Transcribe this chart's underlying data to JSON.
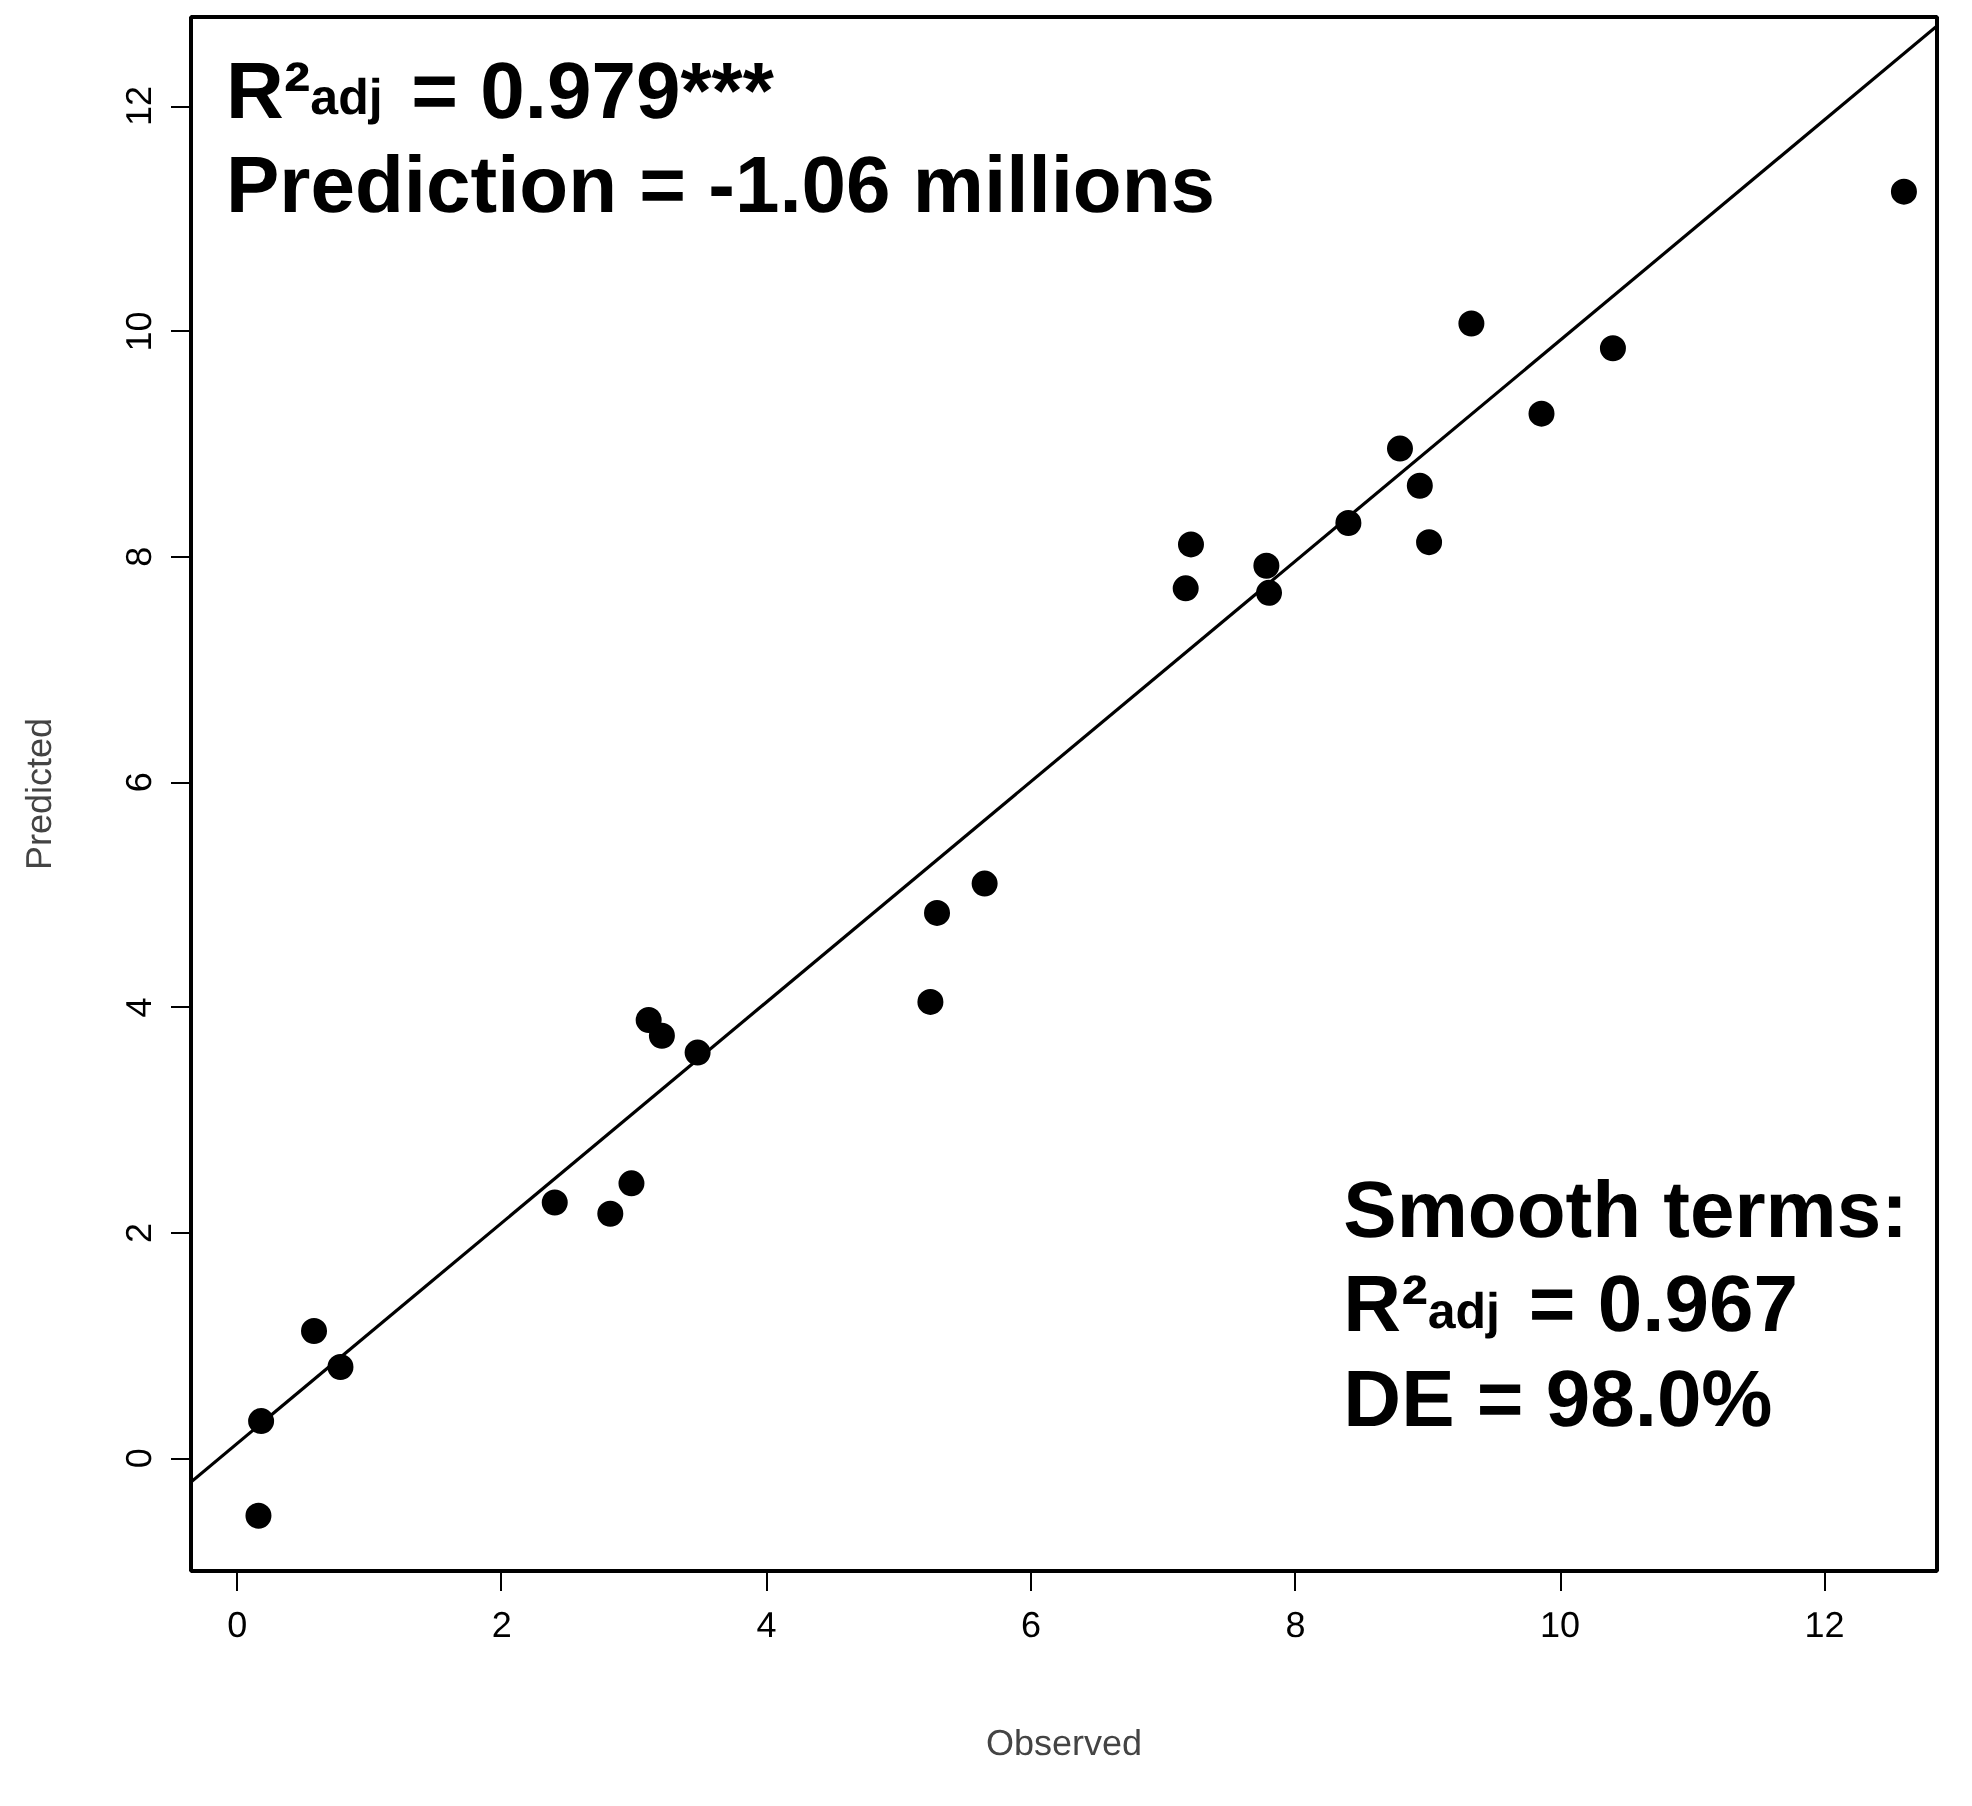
{
  "chart_data": {
    "type": "scatter",
    "xlabel": "Observed",
    "ylabel": "Predicted",
    "xlim": [
      -0.35,
      12.85
    ],
    "ylim": [
      -1.0,
      12.79
    ],
    "xticks": [
      0,
      2,
      4,
      6,
      8,
      10,
      12
    ],
    "yticks": [
      0,
      2,
      4,
      6,
      8,
      10,
      12
    ],
    "grid": false,
    "marker": "circle",
    "series": [
      {
        "color": "#000000",
        "x": [
          0.16,
          0.18,
          0.58,
          0.78,
          2.4,
          2.82,
          2.98,
          3.11,
          3.21,
          3.48,
          5.24,
          5.29,
          5.65,
          7.17,
          7.21,
          7.78,
          7.8,
          8.4,
          8.79,
          8.94,
          9.01,
          9.33,
          9.86,
          10.4,
          12.6
        ],
        "values": [
          -0.51,
          0.33,
          1.13,
          0.81,
          2.27,
          2.17,
          2.44,
          3.89,
          3.75,
          3.6,
          4.05,
          4.84,
          5.1,
          7.72,
          8.11,
          7.92,
          7.68,
          8.3,
          8.96,
          8.63,
          8.13,
          10.07,
          9.27,
          9.85,
          11.24
        ]
      },
      {
        "type": "line",
        "color": "#000000",
        "line_style": "solid",
        "marker": "none",
        "x": [
          -0.35,
          12.85
        ],
        "values": [
          -0.21,
          12.71
        ]
      }
    ],
    "annotations": [
      "R²$_{adj}$ = 0.979***\nPrediction = -1.06 millions",
      "Smooth terms:\nR²$_{adj}$ = 0.967\nDE = 98.0%"
    ]
  }
}
